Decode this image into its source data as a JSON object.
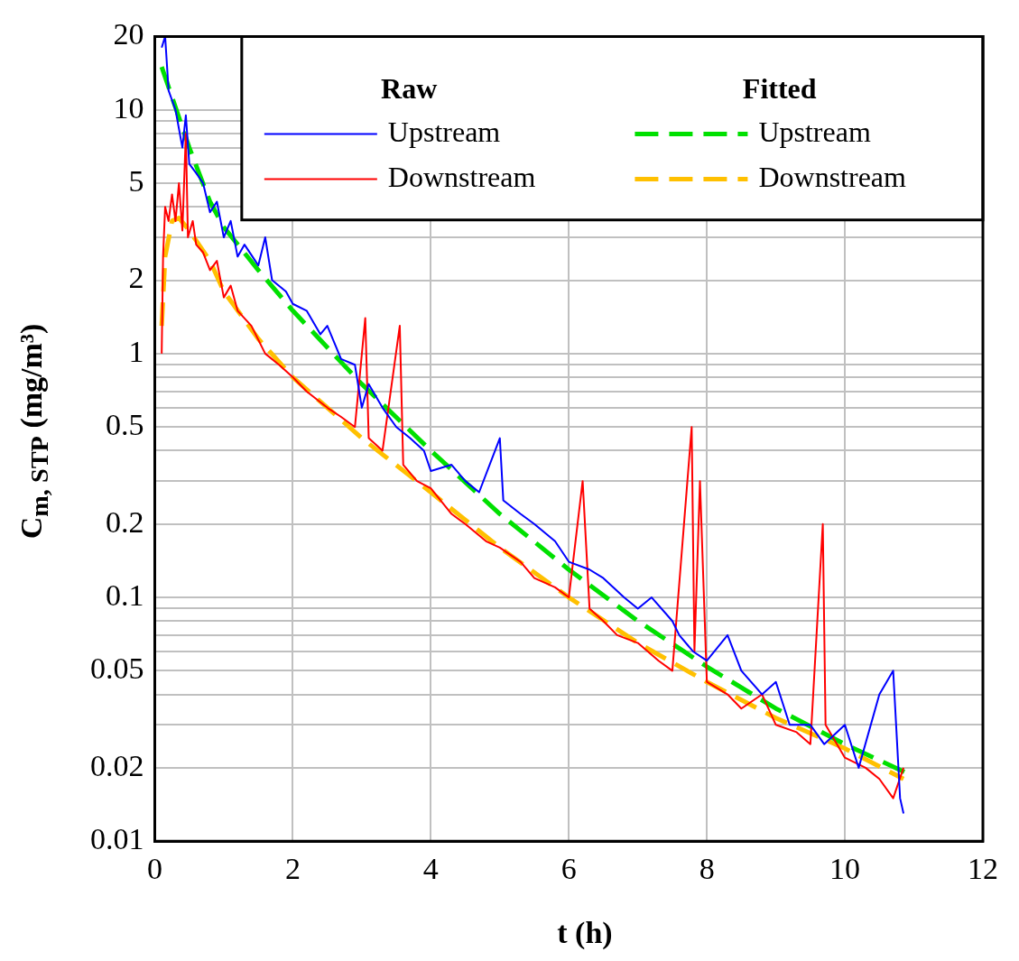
{
  "chart_data": {
    "type": "line",
    "xlabel": "t (h)",
    "ylabel": "C$_{m, STP}$ (mg/m³)",
    "log": "y",
    "grid": true,
    "legend": "top right",
    "annotations": [
      "Raw",
      "Fitted"
    ],
    "xlim": [
      0,
      12
    ],
    "xticks": [
      0,
      2,
      4,
      6,
      8,
      10,
      12
    ],
    "ylim": [
      0.01,
      20
    ],
    "yticks": [
      0.01,
      0.02,
      {
        "value": 0.03,
        "label": null
      },
      {
        "value": 0.04,
        "label": null
      },
      0.05,
      {
        "value": 0.06,
        "label": null
      },
      {
        "value": 0.07,
        "label": null
      },
      {
        "value": 0.08,
        "label": null
      },
      {
        "value": 0.09,
        "label": null
      },
      0.1,
      0.2,
      {
        "value": 0.3,
        "label": null
      },
      {
        "value": 0.4,
        "label": null
      },
      0.5,
      {
        "value": 0.6,
        "label": null
      },
      {
        "value": 0.7,
        "label": null
      },
      {
        "value": 0.8,
        "label": null
      },
      {
        "value": 0.9,
        "label": null
      },
      1,
      2,
      {
        "value": 3,
        "label": null
      },
      {
        "value": 4,
        "label": null
      },
      5,
      {
        "value": 6,
        "label": null
      },
      {
        "value": 7,
        "label": null
      },
      {
        "value": 8,
        "label": null
      },
      {
        "value": 9,
        "label": null
      },
      10,
      20
    ],
    "series": [
      {
        "name": "Upstream",
        "color": "#0000ff",
        "line_style": "solid",
        "x": [
          0.1,
          0.15,
          0.2,
          0.3,
          0.4,
          0.45,
          0.5,
          0.6,
          0.7,
          0.8,
          0.9,
          1.0,
          1.1,
          1.2,
          1.3,
          1.5,
          1.6,
          1.7,
          1.9,
          2.0,
          2.2,
          2.4,
          2.5,
          2.7,
          2.9,
          3.0,
          3.1,
          3.3,
          3.5,
          3.7,
          3.9,
          4.0,
          4.3,
          4.5,
          4.7,
          5.0,
          5.05,
          5.3,
          5.5,
          5.8,
          6.0,
          6.3,
          6.5,
          6.8,
          7.0,
          7.2,
          7.5,
          7.6,
          7.8,
          8.0,
          8.3,
          8.5,
          8.8,
          9.0,
          9.2,
          9.5,
          9.7,
          10.0,
          10.2,
          10.5,
          10.7,
          10.8,
          10.85
        ],
        "values": [
          18,
          20,
          12,
          10,
          7,
          9.5,
          6,
          5.5,
          5,
          3.8,
          4.2,
          3,
          3.5,
          2.5,
          2.8,
          2.3,
          3,
          2,
          1.8,
          1.6,
          1.5,
          1.2,
          1.3,
          0.95,
          0.9,
          0.6,
          0.75,
          0.6,
          0.5,
          0.45,
          0.4,
          0.33,
          0.35,
          0.3,
          0.27,
          0.45,
          0.25,
          0.22,
          0.2,
          0.17,
          0.14,
          0.13,
          0.12,
          0.1,
          0.09,
          0.1,
          0.08,
          0.07,
          0.06,
          0.055,
          0.07,
          0.05,
          0.04,
          0.045,
          0.03,
          0.03,
          0.025,
          0.03,
          0.02,
          0.04,
          0.05,
          0.015,
          0.013
        ]
      },
      {
        "name": "Downstream",
        "color": "#ff0000",
        "line_style": "solid",
        "x": [
          0.1,
          0.12,
          0.15,
          0.2,
          0.25,
          0.3,
          0.35,
          0.4,
          0.45,
          0.48,
          0.55,
          0.6,
          0.7,
          0.8,
          0.9,
          1.0,
          1.1,
          1.2,
          1.4,
          1.6,
          1.8,
          2.0,
          2.2,
          2.5,
          2.7,
          2.9,
          3.05,
          3.1,
          3.3,
          3.55,
          3.6,
          3.8,
          4.0,
          4.3,
          4.5,
          4.8,
          5.0,
          5.3,
          5.5,
          5.8,
          6.0,
          6.2,
          6.3,
          6.5,
          6.7,
          7.0,
          7.3,
          7.5,
          7.78,
          7.82,
          7.9,
          8.0,
          8.3,
          8.5,
          8.8,
          9.0,
          9.3,
          9.5,
          9.68,
          9.72,
          10.0,
          10.3,
          10.5,
          10.7,
          10.85
        ],
        "values": [
          1.0,
          2.5,
          4,
          3.5,
          4.5,
          3.5,
          5,
          3.2,
          8,
          3,
          3.5,
          2.8,
          2.6,
          2.2,
          2.4,
          1.7,
          1.9,
          1.5,
          1.3,
          1.0,
          0.9,
          0.8,
          0.7,
          0.6,
          0.55,
          0.5,
          1.4,
          0.45,
          0.4,
          1.3,
          0.35,
          0.3,
          0.28,
          0.22,
          0.2,
          0.17,
          0.16,
          0.14,
          0.12,
          0.11,
          0.1,
          0.3,
          0.09,
          0.08,
          0.07,
          0.065,
          0.055,
          0.05,
          0.5,
          0.06,
          0.3,
          0.045,
          0.04,
          0.035,
          0.04,
          0.03,
          0.028,
          0.025,
          0.2,
          0.03,
          0.022,
          0.02,
          0.018,
          0.015,
          0.02
        ]
      },
      {
        "name": "Upstream",
        "color": "#00e000",
        "line_style": "dashed",
        "x": [
          0.1,
          0.5,
          0.8,
          1,
          1.5,
          2,
          3,
          4,
          5,
          6,
          7,
          8,
          9,
          10,
          10.9
        ],
        "values": [
          15,
          7,
          4.2,
          3.3,
          2.2,
          1.5,
          0.75,
          0.4,
          0.22,
          0.13,
          0.08,
          0.052,
          0.035,
          0.025,
          0.019
        ]
      },
      {
        "name": "Downstream",
        "color": "#ffc000",
        "line_style": "dashed",
        "x": [
          0.1,
          0.15,
          0.25,
          0.35,
          0.5,
          0.8,
          1,
          1.5,
          2,
          3,
          4,
          5,
          6,
          7,
          8,
          9,
          10,
          10.85
        ],
        "values": [
          1.3,
          2.5,
          3.5,
          3.6,
          3.2,
          2.4,
          1.8,
          1.15,
          0.8,
          0.45,
          0.27,
          0.16,
          0.1,
          0.065,
          0.045,
          0.032,
          0.024,
          0.018
        ]
      }
    ]
  }
}
